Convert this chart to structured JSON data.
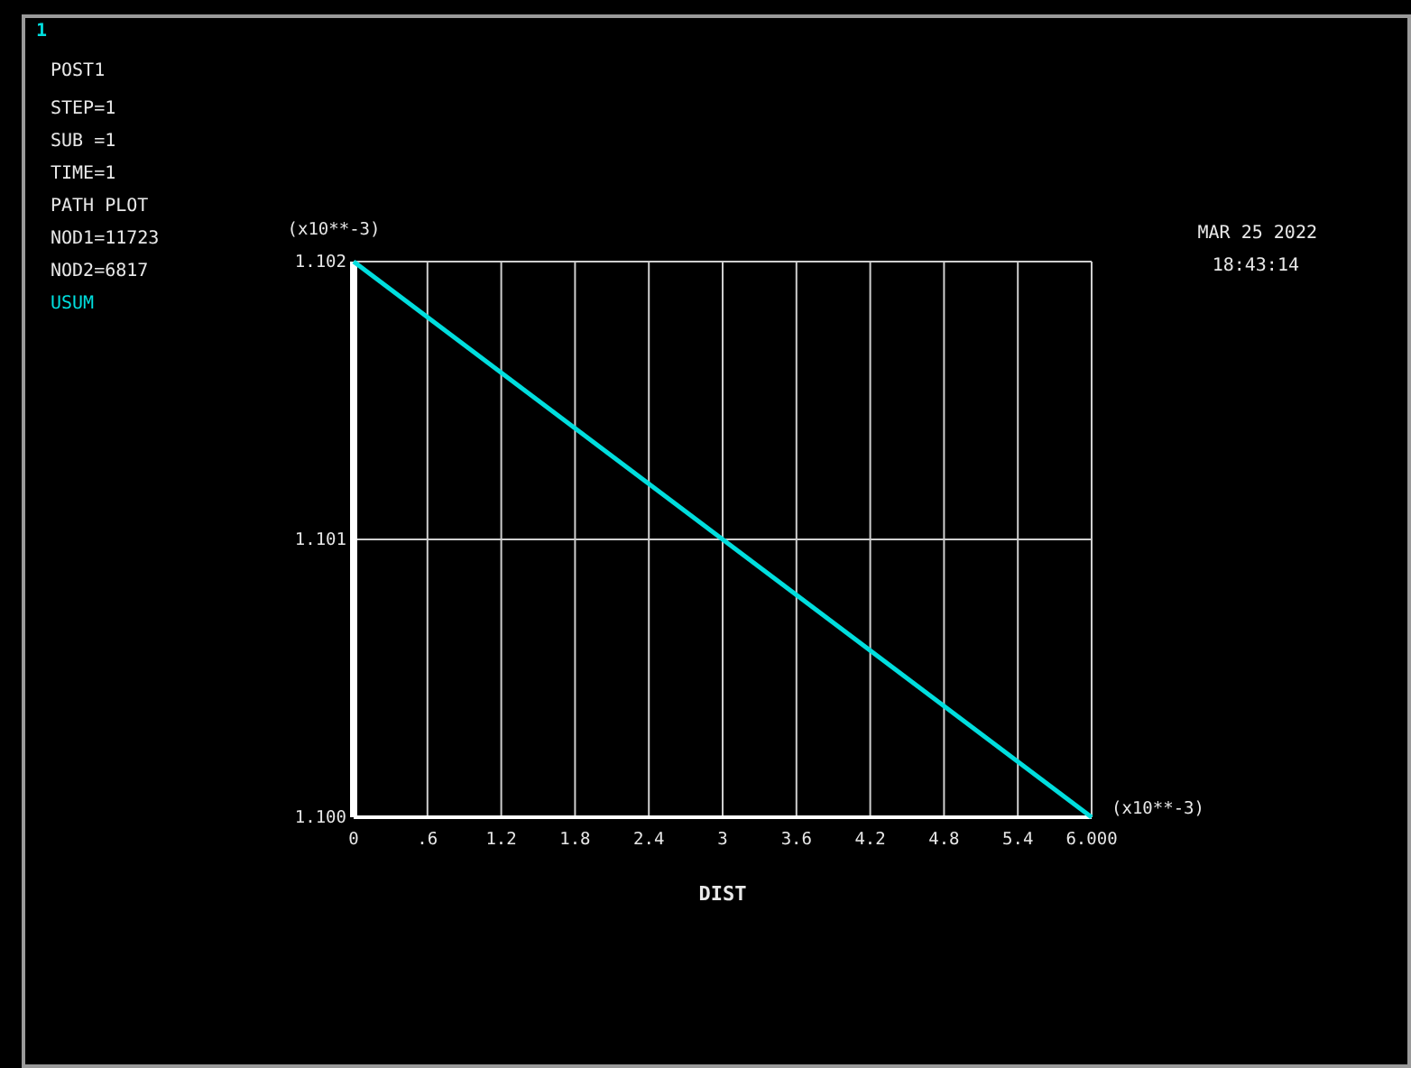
{
  "chart_data": {
    "type": "line",
    "xlabel": "DIST",
    "ylabel": "(x10**-3)",
    "annotations": [
      "1",
      "POST1",
      "STEP=1",
      "SUB =1",
      "TIME=1",
      "PATH PLOT",
      "NOD1=11723",
      "NOD2=6817",
      "USUM",
      "MAR 25 2022",
      "18:43:14",
      "(x10**-3)"
    ],
    "x": [
      0,
      3,
      6
    ],
    "series": [
      {
        "color": "#00dede",
        "values": [
          1.102,
          1.101,
          1.1
        ]
      }
    ],
    "xlim": [
      0,
      6
    ],
    "ylim": [
      1.1,
      1.102
    ],
    "xticks": [
      0,
      {
        "value": 0.6,
        "label": ".6"
      },
      1.2,
      1.8,
      2.4,
      3,
      3.6,
      4.2,
      4.8,
      5.4,
      {
        "value": 6,
        "label": "6.000"
      }
    ],
    "yticks": [
      {
        "value": 1.1,
        "label": "1.100"
      },
      1.101,
      1.102
    ],
    "grid": true,
    "marker": "none",
    "line_style": "solid"
  }
}
